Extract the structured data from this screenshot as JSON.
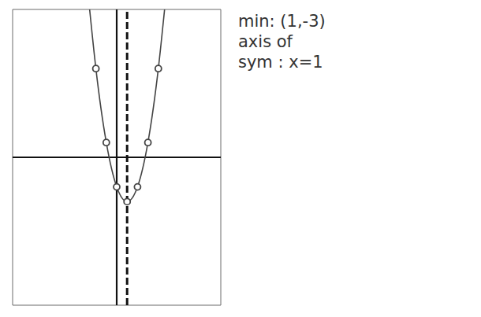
{
  "chart_data": {
    "type": "line",
    "x": [
      -2.6,
      -2,
      -1,
      0,
      1,
      2,
      3,
      4,
      4.6
    ],
    "values": [
      10,
      6,
      1,
      -2,
      -3,
      -2,
      1,
      6,
      10
    ],
    "color": "#444444",
    "line_style": "solid",
    "marker_points": {
      "x": [
        -2,
        -1,
        0,
        1,
        2,
        3,
        4
      ],
      "values": [
        6,
        1,
        -2,
        -3,
        -2,
        1,
        6
      ],
      "marker": "circle"
    },
    "axis_of_symmetry": 1,
    "xlim": [
      -10,
      10
    ],
    "ylim": [
      -10,
      10
    ],
    "xticks": [
      -10,
      -9,
      -8,
      -7,
      -6,
      -5,
      -4,
      -3,
      -2,
      -1,
      0,
      1,
      2,
      3,
      4,
      5,
      6,
      7,
      8,
      9,
      10
    ],
    "yticks": [
      -10,
      -9,
      -8,
      -7,
      -6,
      -5,
      -4,
      -3,
      -2,
      -1,
      0,
      1,
      2,
      3,
      4,
      5,
      6,
      7,
      8,
      9,
      10
    ],
    "grid": true,
    "tick_labels": false,
    "annotations": [
      "min: (1,-3)",
      "axis of",
      "sym : x=1"
    ]
  }
}
